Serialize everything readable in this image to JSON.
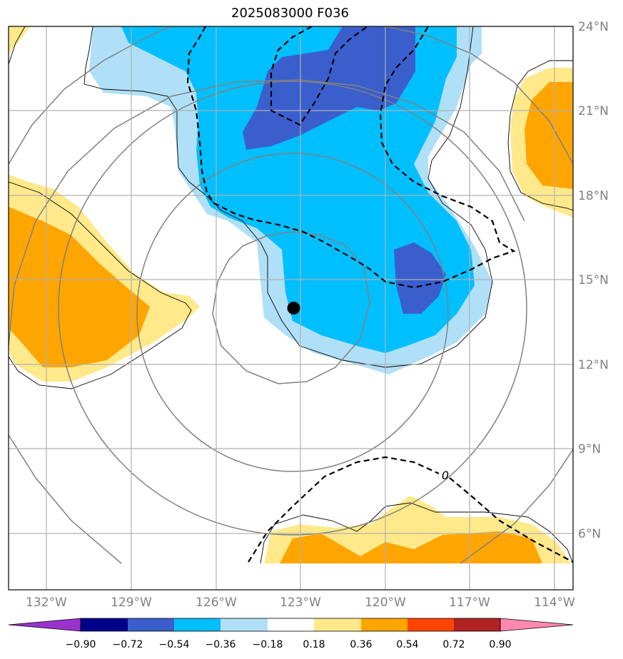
{
  "title": "2025083000 F036",
  "map": {
    "lat_labels": [
      "24°N",
      "21°N",
      "18°N",
      "15°N",
      "12°N",
      "9°N",
      "6°N"
    ],
    "lon_labels": [
      "132°W",
      "129°W",
      "126°W",
      "123°W",
      "120°W",
      "117°W",
      "114°W"
    ],
    "contour_label": "0",
    "storm_center": {
      "lon": -123.3,
      "lat": 14.0
    },
    "extent": {
      "lon": [
        -133.4,
        -113.4
      ],
      "lat": [
        4.0,
        24.0
      ]
    }
  },
  "colorbar": {
    "levels": [
      "−0.90",
      "−0.72",
      "−0.54",
      "−0.36",
      "−0.18",
      "0.18",
      "0.36",
      "0.54",
      "0.72",
      "0.90"
    ],
    "colors": [
      "#9932cc",
      "#00008b",
      "#3a5fcd",
      "#00bfff",
      "#b0e0f8",
      "#ffffff",
      "#ffe98a",
      "#ffa500",
      "#ff4500",
      "#b22222",
      "#ff88b0"
    ]
  }
}
